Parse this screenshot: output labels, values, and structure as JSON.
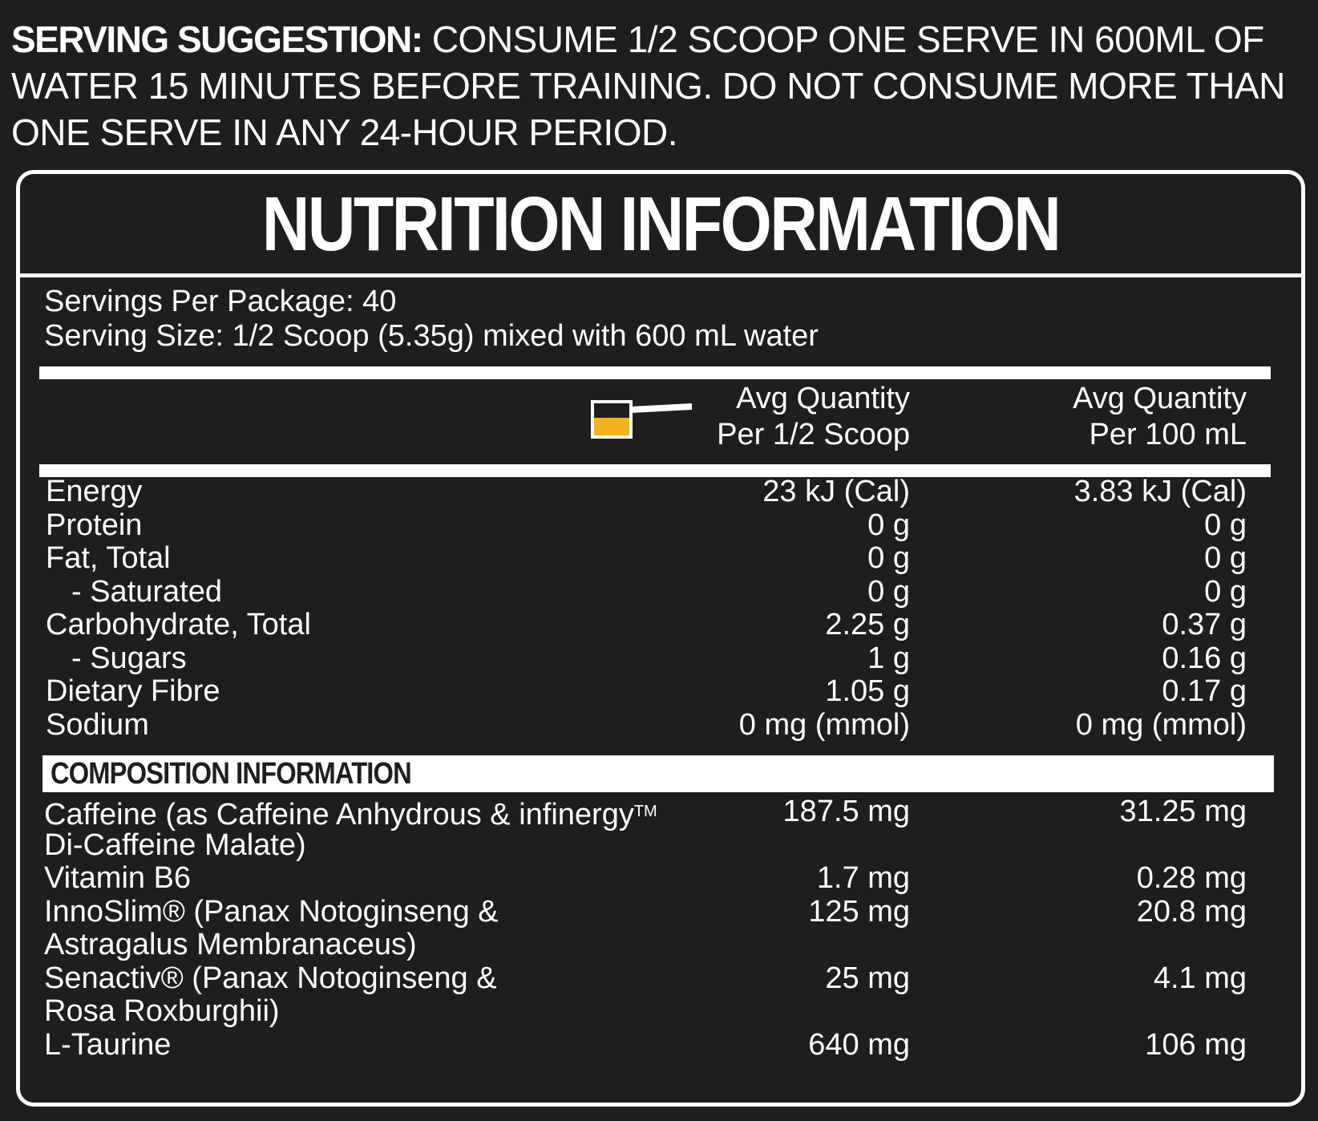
{
  "serving_suggestion": {
    "lead": "SERVING SUGGESTION:",
    "text": "CONSUME 1/2 SCOOP ONE SERVE IN 600ML OF WATER 15 MINUTES BEFORE TRAINING. DO NOT CONSUME MORE THAN ONE SERVE IN ANY 24-HOUR PERIOD."
  },
  "panel": {
    "title": "NUTRITION INFORMATION",
    "servings_per_package": "Servings Per Package: 40",
    "serving_size": "Serving Size: 1/2 Scoop (5.35g) mixed with 600 mL water",
    "scoop_icon_fill": "#f5b21b",
    "columns": [
      {
        "line1": "Avg Quantity",
        "line2": "Per 1/2 Scoop"
      },
      {
        "line1": "Avg Quantity",
        "line2": "Per 100 mL"
      }
    ],
    "nutrients": [
      {
        "label": "Energy",
        "per_scoop": "23 kJ (Cal)",
        "per_100ml": "3.83 kJ (Cal)"
      },
      {
        "label": "Protein",
        "per_scoop": "0 g",
        "per_100ml": "0 g"
      },
      {
        "label": "Fat, Total",
        "per_scoop": "0 g",
        "per_100ml": "0 g"
      },
      {
        "label": "- Saturated",
        "per_scoop": "0 g",
        "per_100ml": "0 g"
      },
      {
        "label": "Carbohydrate, Total",
        "per_scoop": "2.25 g",
        "per_100ml": "0.37 g"
      },
      {
        "label": "- Sugars",
        "per_scoop": "1 g",
        "per_100ml": "0.16 g"
      },
      {
        "label": "Dietary Fibre",
        "per_scoop": "1.05 g",
        "per_100ml": "0.17 g"
      },
      {
        "label": "Sodium",
        "per_scoop": "0 mg (mmol)",
        "per_100ml": "0 mg (mmol)"
      }
    ],
    "composition_heading": "COMPOSITION INFORMATION",
    "composition": [
      {
        "label_line1": "Caffeine (as Caffeine Anhydrous & infinergy",
        "trademark": "TM",
        "label_line2": "Di-Caffeine Malate)",
        "per_scoop": "187.5 mg",
        "per_100ml": "31.25 mg"
      },
      {
        "label_line1": "Vitamin B6",
        "label_line2": "",
        "per_scoop": "1.7 mg",
        "per_100ml": "0.28 mg"
      },
      {
        "label_line1": "InnoSlim® (Panax Notoginseng &",
        "label_line2": "Astragalus Membranaceus)",
        "per_scoop": "125 mg",
        "per_100ml": "20.8 mg"
      },
      {
        "label_line1": "Senactiv® (Panax Notoginseng &",
        "label_line2": "Rosa Roxburghii)",
        "per_scoop": "25 mg",
        "per_100ml": "4.1 mg"
      },
      {
        "label_line1": "L-Taurine",
        "label_line2": "",
        "per_scoop": "640 mg",
        "per_100ml": "106 mg"
      }
    ]
  }
}
